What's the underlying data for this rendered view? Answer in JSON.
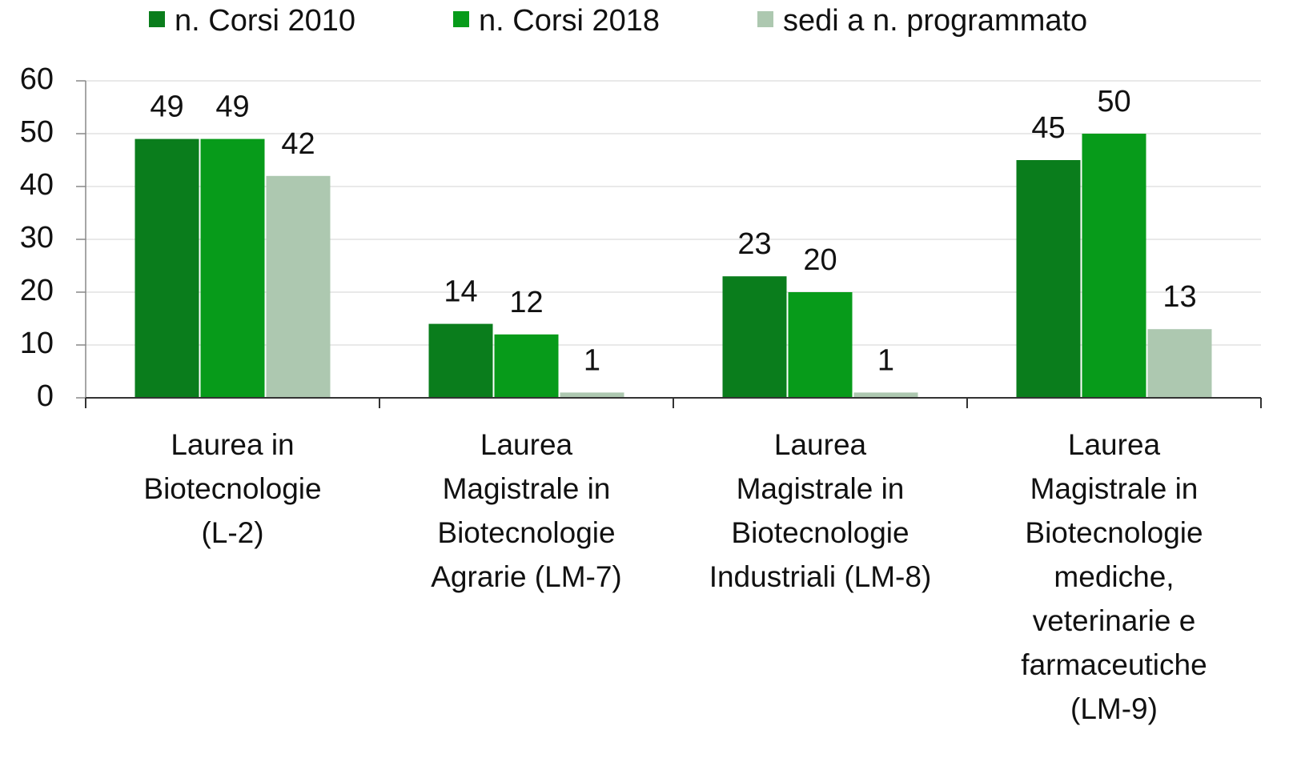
{
  "chart_data": {
    "type": "bar",
    "categories": [
      "Laurea in\nBiotecnologie\n(L-2)",
      "Laurea\nMagistrale in\nBiotecnologie\nAgrarie (LM-7)",
      "Laurea\nMagistrale in\nBiotecnologie\nIndustriali (LM-8)",
      "Laurea\nMagistrale in\nBiotecnologie\nmediche,\nveterinarie e\nfarmaceutiche\n(LM-9)"
    ],
    "series": [
      {
        "name": "n. Corsi 2010",
        "color": "#0a7d1c",
        "values": [
          49,
          14,
          23,
          45
        ]
      },
      {
        "name": "n. Corsi 2018",
        "color": "#079b1a",
        "values": [
          49,
          12,
          20,
          50
        ]
      },
      {
        "name": "sedi a n. programmato",
        "color": "#adc8b0",
        "values": [
          42,
          1,
          1,
          13
        ]
      }
    ],
    "ylim": [
      0,
      60
    ],
    "yticks": [
      0,
      10,
      20,
      30,
      40,
      50,
      60
    ],
    "grid": true,
    "legend": "top"
  }
}
